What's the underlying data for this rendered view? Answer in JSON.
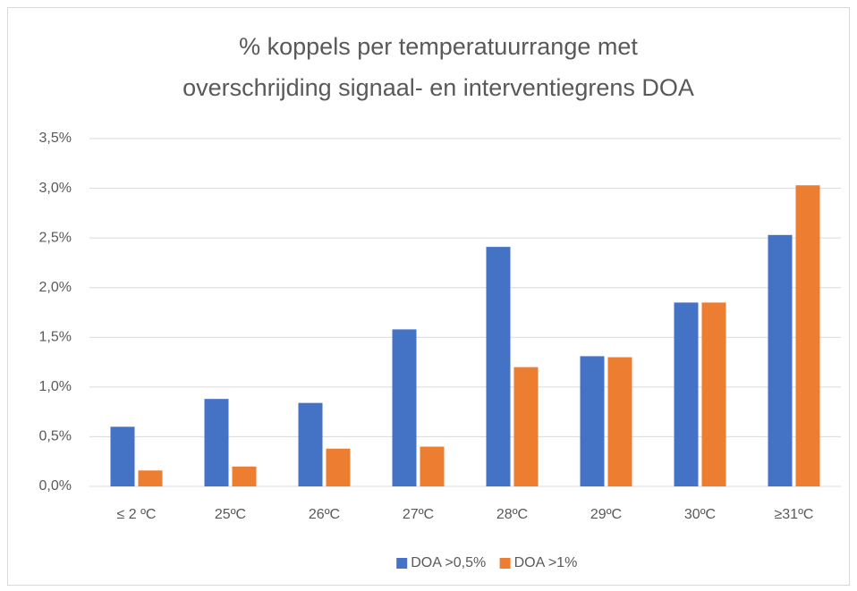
{
  "chart_data": {
    "type": "bar",
    "title": [
      "% koppels per temperatuurrange met",
      "overschrijding signaal- en interventiegrens DOA"
    ],
    "categories": [
      "≤ 2 ºC",
      "25ºC",
      "26ºC",
      "27ºC",
      "28ºC",
      "29ºC",
      "30ºC",
      "≥31ºC"
    ],
    "series": [
      {
        "name": "DOA >0,5%",
        "color": "#4472c4",
        "values": [
          0.6,
          0.88,
          0.84,
          1.58,
          2.41,
          1.31,
          1.85,
          2.53
        ]
      },
      {
        "name": "DOA >1%",
        "color": "#ed7d31",
        "values": [
          0.16,
          0.2,
          0.38,
          0.4,
          1.2,
          1.3,
          1.85,
          3.03
        ]
      }
    ],
    "ylim": [
      0,
      3.5
    ],
    "yticks": [
      {
        "value": 0,
        "label": "0,0%"
      },
      {
        "value": 0.5,
        "label": "0,5%"
      },
      {
        "value": 1,
        "label": "1,0%"
      },
      {
        "value": 1.5,
        "label": "1,5%"
      },
      {
        "value": 2,
        "label": "2,0%"
      },
      {
        "value": 2.5,
        "label": "2,5%"
      },
      {
        "value": 3,
        "label": "3,0%"
      },
      {
        "value": 3.5,
        "label": "3,5%"
      }
    ],
    "grid": true,
    "legend": "bottom"
  }
}
